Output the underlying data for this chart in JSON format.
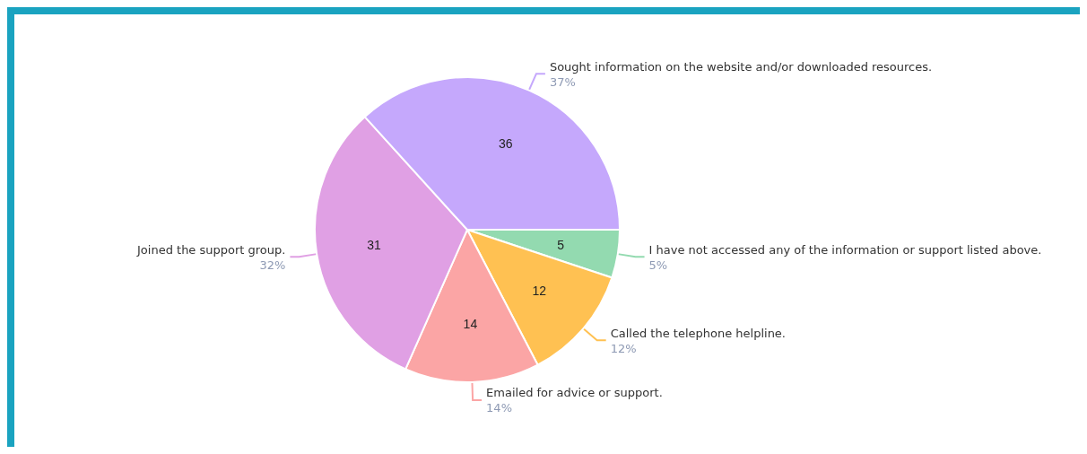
{
  "chart_data": {
    "type": "pie",
    "categories": [
      "I have not accessed any of the information or support listed above.",
      "Called the telephone helpline.",
      "Emailed for advice or support.",
      "Joined the support group.",
      "Sought information on the website and/or downloaded resources."
    ],
    "values": [
      5,
      12,
      14,
      31,
      36
    ],
    "colors": [
      "#93dab0",
      "#ffc152",
      "#fba5a5",
      "#e0a0e4",
      "#c5a8fc"
    ],
    "annotations": [
      "5%",
      "12%",
      "14%",
      "32%",
      "37%"
    ],
    "data_labels": true,
    "legend": false
  }
}
